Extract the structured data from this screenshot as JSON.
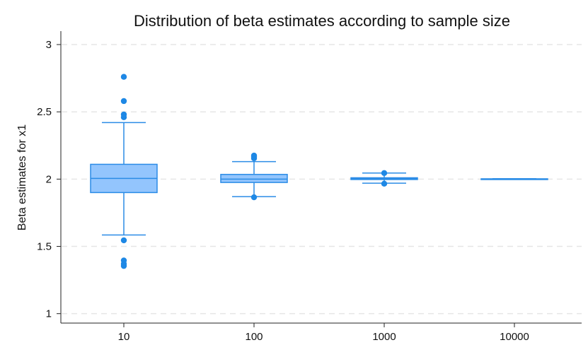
{
  "chart_data": {
    "type": "box",
    "title": "Distribution of beta estimates according to sample size",
    "xlabel": "",
    "ylabel": "Beta estimates for x1",
    "ylim": [
      0.93,
      3.1
    ],
    "yticks": [
      1,
      1.5,
      2,
      2.5,
      3
    ],
    "ytick_labels": [
      "1",
      "1.5",
      "2",
      "2.5",
      "3"
    ],
    "grid": "horizontal dashed",
    "legend": "none",
    "colors": {
      "box_fill": "#93C5FD",
      "box_edge": "#2B8CE6",
      "outlier": "#1E88E5"
    },
    "categories": [
      "10",
      "100",
      "1000",
      "10000"
    ],
    "boxes": [
      {
        "category": "10",
        "whisker_low": 1.585,
        "q1": 1.9,
        "median": 2.005,
        "q3": 2.11,
        "whisker_high": 2.42,
        "outliers": [
          2.76,
          2.58,
          2.48,
          2.46,
          1.545,
          1.395,
          1.37,
          1.355
        ]
      },
      {
        "category": "100",
        "whisker_low": 1.87,
        "q1": 1.975,
        "median": 2.0,
        "q3": 2.035,
        "whisker_high": 2.13,
        "outliers": [
          2.175,
          2.165,
          2.155,
          1.865
        ]
      },
      {
        "category": "1000",
        "whisker_low": 1.97,
        "q1": 1.997,
        "median": 2.003,
        "q3": 2.01,
        "whisker_high": 2.045,
        "outliers": [
          2.045,
          1.966
        ]
      },
      {
        "category": "10000",
        "whisker_low": 1.998,
        "q1": 2.0,
        "median": 2.001,
        "q3": 2.002,
        "whisker_high": 2.003,
        "outliers": []
      }
    ]
  }
}
